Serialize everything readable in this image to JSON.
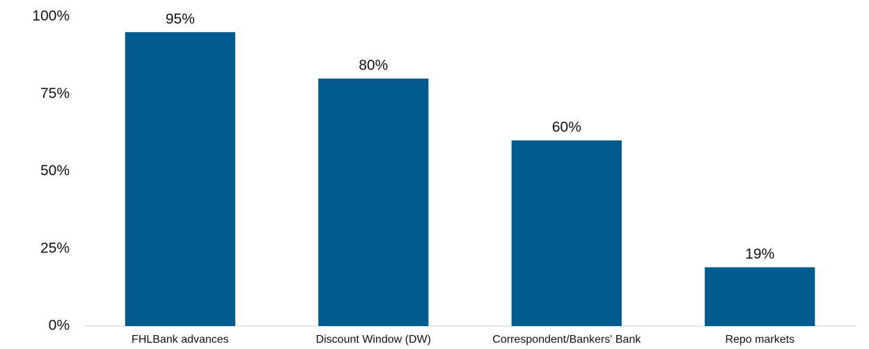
{
  "chart_data": {
    "type": "bar",
    "categories": [
      "FHLBank advances",
      "Discount Window (DW)",
      "Correspondent/Bankers' Bank",
      "Repo markets"
    ],
    "values": [
      95,
      80,
      60,
      19
    ],
    "value_labels": [
      "95%",
      "80%",
      "60%",
      "19%"
    ],
    "color": "#005b8c",
    "ylim": [
      0,
      100
    ],
    "yticks": [
      {
        "value": 0,
        "label": "0%"
      },
      {
        "value": 25,
        "label": "25%"
      },
      {
        "value": 50,
        "label": "50%"
      },
      {
        "value": 75,
        "label": "75%"
      },
      {
        "value": 100,
        "label": "100%"
      }
    ],
    "grid": false
  }
}
